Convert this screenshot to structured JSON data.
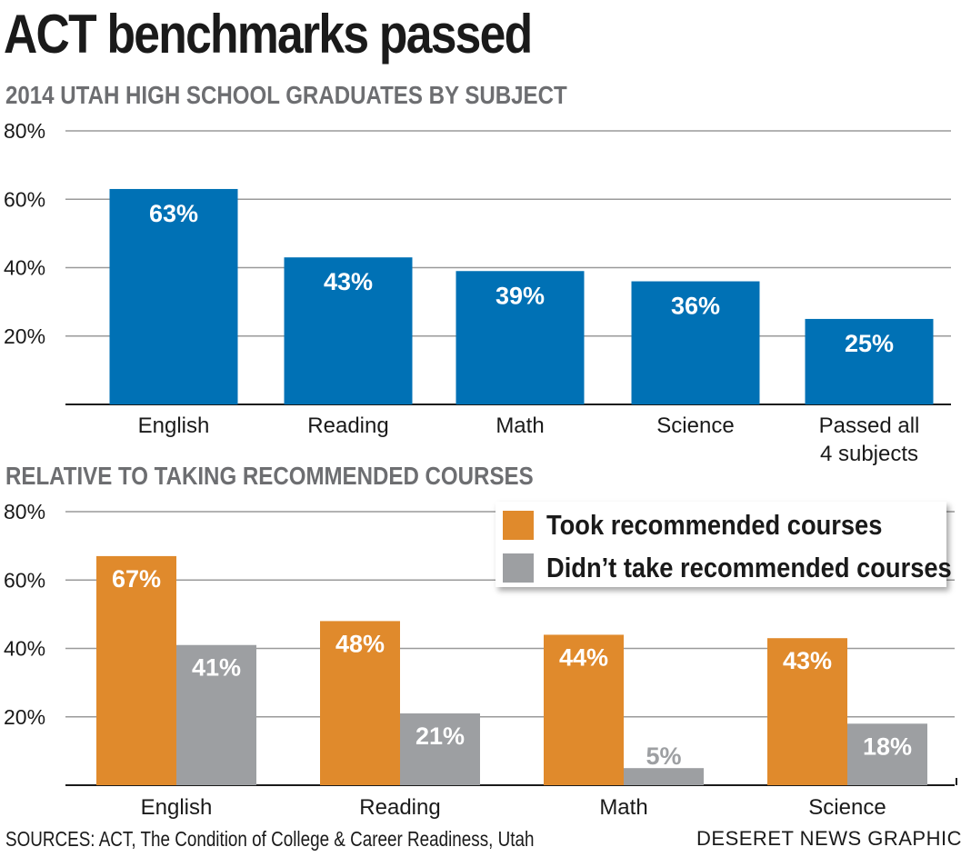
{
  "title": "ACT benchmarks passed",
  "footer": {
    "sources": "SOURCES: ACT, The Condition of College & Career Readiness, Utah",
    "credit": "DESERET NEWS GRAPHIC"
  },
  "colors": {
    "blue": "#0071b5",
    "orange": "#e08a2c",
    "gray": "#9d9fa2",
    "grid": "#9a9a9a"
  },
  "chart_data": [
    {
      "type": "bar",
      "title": "2014 UTAH HIGH SCHOOL GRADUATES BY SUBJECT",
      "categories": [
        "English",
        "Reading",
        "Math",
        "Science",
        "Passed all\n4 subjects"
      ],
      "values": [
        63,
        43,
        39,
        36,
        25
      ],
      "data_labels": [
        "63%",
        "43%",
        "39%",
        "36%",
        "25%"
      ],
      "ylim": [
        0,
        80
      ],
      "yticks": [
        20,
        40,
        60,
        80
      ],
      "ytick_labels": [
        "20%",
        "40%",
        "60%",
        "80%"
      ],
      "grid": true
    },
    {
      "type": "bar",
      "title": "RELATIVE TO TAKING RECOMMENDED COURSES",
      "categories": [
        "English",
        "Reading",
        "Math",
        "Science"
      ],
      "series": [
        {
          "name": "Took recommended courses",
          "values": [
            67,
            48,
            44,
            43
          ],
          "data_labels": [
            "67%",
            "48%",
            "44%",
            "43%"
          ]
        },
        {
          "name": "Didn’t take recommended courses",
          "values": [
            41,
            21,
            5,
            18
          ],
          "data_labels": [
            "41%",
            "21%",
            "5%",
            "18%"
          ]
        }
      ],
      "ylim": [
        0,
        80
      ],
      "yticks": [
        20,
        40,
        60,
        80
      ],
      "ytick_labels": [
        "20%",
        "40%",
        "60%",
        "80%"
      ],
      "grid": true,
      "legend": "top-right"
    }
  ]
}
